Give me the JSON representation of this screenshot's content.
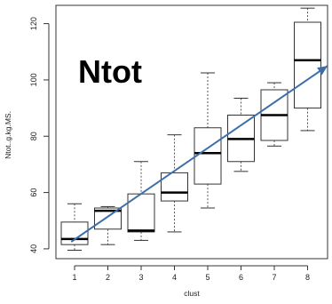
{
  "chart_data": {
    "type": "box",
    "title": "Ntot",
    "xlabel": "clust",
    "ylabel": "Ntot..g.kg.MS.",
    "categories": [
      "1",
      "2",
      "3",
      "4",
      "5",
      "6",
      "7",
      "8"
    ],
    "y_ticks": [
      40,
      60,
      80,
      100,
      120
    ],
    "ylim": [
      36.5,
      126.5
    ],
    "boxes": [
      {
        "category": "1",
        "whisker_low": 39.5,
        "q1": 41.5,
        "median": 43.5,
        "q3": 49.5,
        "whisker_high": 56
      },
      {
        "category": "2",
        "whisker_low": 41.5,
        "q1": 47,
        "median": 53.5,
        "q3": 54.5,
        "whisker_high": 55
      },
      {
        "category": "3",
        "whisker_low": 43,
        "q1": 46,
        "median": 46.5,
        "q3": 59.5,
        "whisker_high": 71
      },
      {
        "category": "4",
        "whisker_low": 46,
        "q1": 57,
        "median": 60,
        "q3": 67,
        "whisker_high": 80.5
      },
      {
        "category": "5",
        "whisker_low": 54.5,
        "q1": 63,
        "median": 74,
        "q3": 83,
        "whisker_high": 102.5
      },
      {
        "category": "6",
        "whisker_low": 67.5,
        "q1": 71,
        "median": 79,
        "q3": 87.5,
        "whisker_high": 93.5
      },
      {
        "category": "7",
        "whisker_low": 76.5,
        "q1": 78.5,
        "median": 87.5,
        "q3": 96.5,
        "whisker_high": 99
      },
      {
        "category": "8",
        "whisker_low": 82,
        "q1": 90,
        "median": 107,
        "q3": 120.5,
        "whisker_high": 125.5
      }
    ],
    "trend_arrow": {
      "from": {
        "x": 0.9,
        "y": 42.5
      },
      "to": {
        "x": 8.6,
        "y": 105
      },
      "color": "#3d6eaa"
    },
    "grid": false
  }
}
